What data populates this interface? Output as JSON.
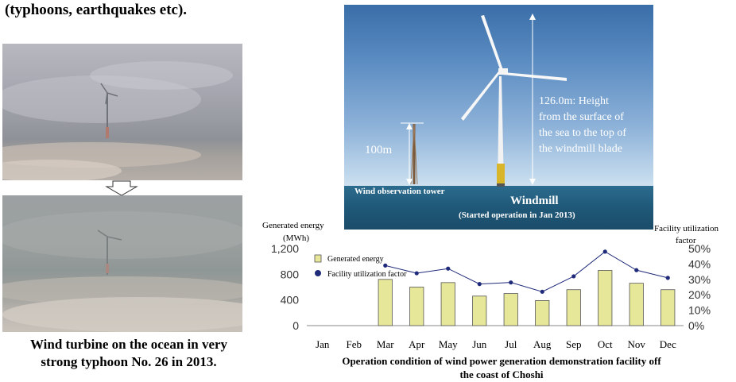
{
  "header": {
    "text": "(typhoons,  earthquakes  etc)."
  },
  "left": {
    "caption_line1": "Wind turbine on the ocean in very",
    "caption_line2": "strong typhoon No. 26 in 2013."
  },
  "windmill_photo": {
    "height_line1": "126.0m: Height",
    "height_line2": "from  the surface  of",
    "height_line3": "the sea to the top of",
    "height_line4": "the windmill  blade",
    "tower_height": "100m",
    "tower_label": "Wind observation tower",
    "windmill_label": "Windmill",
    "windmill_sub": "(Started operation in Jan 2013)"
  },
  "chart_data": {
    "type": "bar+line",
    "title": "Operation  condition  of  wind  power  generation  demonstration  facility  off  the coast of Choshi",
    "title_line1": "Operation  condition  of  wind  power  generation  demonstration  facility  off",
    "title_line2": "the coast of Choshi",
    "categories": [
      "Jan",
      "Feb",
      "Mar",
      "Apr",
      "May",
      "Jun",
      "Jul",
      "Aug",
      "Sep",
      "Oct",
      "Nov",
      "Dec"
    ],
    "series": [
      {
        "name": "Generated energy",
        "axis": "left",
        "type": "bar",
        "values": [
          null,
          null,
          720,
          600,
          670,
          460,
          500,
          390,
          560,
          860,
          660,
          560
        ]
      },
      {
        "name": "Facility utilization factor",
        "axis": "right",
        "type": "line",
        "values": [
          null,
          null,
          0.39,
          0.34,
          0.37,
          0.27,
          0.28,
          0.22,
          0.32,
          0.48,
          0.36,
          0.31
        ]
      }
    ],
    "left_axis": {
      "label_line1": "Generated energy",
      "label_line2": "(MWh)",
      "ylim": [
        0,
        1200
      ],
      "ticks": [
        0,
        400,
        800,
        1200
      ],
      "tick_labels": [
        "0",
        "400",
        "800",
        "1,200"
      ]
    },
    "right_axis": {
      "label_line1": "Facility utilization",
      "label_line2": "factor",
      "ylim": [
        0,
        0.5
      ],
      "ticks": [
        0,
        0.1,
        0.2,
        0.3,
        0.4,
        0.5
      ],
      "tick_labels": [
        "0%",
        "10%",
        "20%",
        "30%",
        "40%",
        "50%"
      ]
    },
    "legend_position": "top-left",
    "colors": {
      "bar": "#e7e79a",
      "bar_stroke": "#555555",
      "line": "#1f2a7a",
      "marker": "#1f2a7a"
    }
  }
}
